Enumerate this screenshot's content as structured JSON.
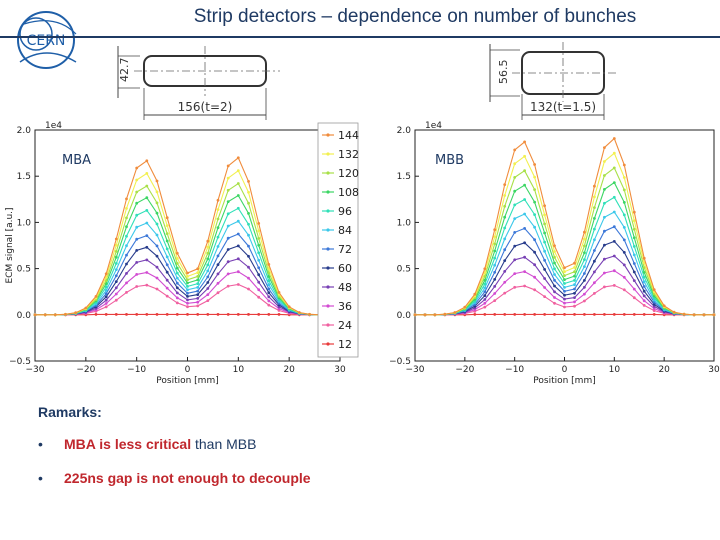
{
  "slide": {
    "title": "Strip detectors – dependence on number of  bunches",
    "logo_text": "CERN",
    "sketch_left": {
      "height_label": "42.7",
      "width_label": "156(t=2)"
    },
    "sketch_right": {
      "height_label": "56.5",
      "width_label": "132(t=1.5)"
    },
    "remarks": {
      "heading": "Ramarks:",
      "items": [
        {
          "bullet": "•",
          "highlight": "MBA is less critical",
          "rest": " than MBB"
        },
        {
          "bullet": "•",
          "highlight": "225ns gap is not enough to decouple",
          "rest": ""
        }
      ]
    },
    "colors": {
      "title": "#1f3a63",
      "accent_red": "#c0272d"
    }
  },
  "chart_data": [
    {
      "type": "line",
      "panel_label": "MBA",
      "scale_label": "1e4",
      "xlabel": "Position [mm]",
      "ylabel": "ECM signal [a.u.]",
      "xlim": [
        -30,
        30
      ],
      "ylim": [
        -0.5,
        2.0
      ],
      "xticks": [
        -30,
        -20,
        -10,
        0,
        10,
        20,
        30
      ],
      "xtick_labels": [
        "−30",
        "−20",
        "−10",
        "0",
        "10",
        "20",
        "30"
      ],
      "yticks": [
        -0.5,
        0.0,
        0.5,
        1.0,
        1.5,
        2.0
      ],
      "ytick_labels": [
        "−0.5",
        "0.0",
        "0.5",
        "1.0",
        "1.5",
        "2.0"
      ],
      "legend_position": "right",
      "x": [
        -30,
        -28,
        -26,
        -24,
        -22,
        -20,
        -18,
        -16,
        -14,
        -12,
        -10,
        -8,
        -6,
        -4,
        -2,
        0,
        2,
        4,
        6,
        8,
        10,
        12,
        14,
        16,
        18,
        20,
        22,
        24,
        26,
        28,
        30
      ],
      "series": [
        {
          "name": "144",
          "color": "#f08c3c",
          "peak": 1.71
        },
        {
          "name": "132",
          "color": "#f2f050",
          "peak": 1.57
        },
        {
          "name": "120",
          "color": "#a8e048",
          "peak": 1.43
        },
        {
          "name": "108",
          "color": "#3cd664",
          "peak": 1.3
        },
        {
          "name": "96",
          "color": "#30e0b8",
          "peak": 1.16
        },
        {
          "name": "84",
          "color": "#3cc8ea",
          "peak": 1.02
        },
        {
          "name": "72",
          "color": "#3c78d8",
          "peak": 0.88
        },
        {
          "name": "60",
          "color": "#283c8c",
          "peak": 0.75
        },
        {
          "name": "48",
          "color": "#7840b4",
          "peak": 0.61
        },
        {
          "name": "36",
          "color": "#d24cd2",
          "peak": 0.47
        },
        {
          "name": "24",
          "color": "#f060a0",
          "peak": 0.33
        },
        {
          "name": "12",
          "color": "#e83c3c",
          "peak": 0.02
        }
      ]
    },
    {
      "type": "line",
      "panel_label": "MBB",
      "scale_label": "1e4",
      "xlabel": "Position [mm]",
      "ylabel": "",
      "xlim": [
        -30,
        30
      ],
      "ylim": [
        -0.5,
        2.0
      ],
      "xticks": [
        -30,
        -20,
        -10,
        0,
        10,
        20,
        30
      ],
      "xtick_labels": [
        "−30",
        "−20",
        "−10",
        "0",
        "10",
        "20",
        "30"
      ],
      "yticks": [
        -0.5,
        0.0,
        0.5,
        1.0,
        1.5,
        2.0
      ],
      "ytick_labels": [
        "−0.5",
        "0.0",
        "0.5",
        "1.0",
        "1.5",
        "2.0"
      ],
      "x": [
        -30,
        -28,
        -26,
        -24,
        -22,
        -20,
        -18,
        -16,
        -14,
        -12,
        -10,
        -8,
        -6,
        -4,
        -2,
        0,
        2,
        4,
        6,
        8,
        10,
        12,
        14,
        16,
        18,
        20,
        22,
        24,
        26,
        28,
        30
      ],
      "series": [
        {
          "name": "144",
          "color": "#f08c3c",
          "peak": 1.92
        },
        {
          "name": "132",
          "color": "#f2f050",
          "peak": 1.76
        },
        {
          "name": "120",
          "color": "#a8e048",
          "peak": 1.6
        },
        {
          "name": "108",
          "color": "#3cd664",
          "peak": 1.44
        },
        {
          "name": "96",
          "color": "#30e0b8",
          "peak": 1.28
        },
        {
          "name": "84",
          "color": "#3cc8ea",
          "peak": 1.12
        },
        {
          "name": "72",
          "color": "#3c78d8",
          "peak": 0.96
        },
        {
          "name": "60",
          "color": "#283c8c",
          "peak": 0.8
        },
        {
          "name": "48",
          "color": "#7840b4",
          "peak": 0.64
        },
        {
          "name": "36",
          "color": "#d24cd2",
          "peak": 0.48
        },
        {
          "name": "24",
          "color": "#f060a0",
          "peak": 0.32
        },
        {
          "name": "12",
          "color": "#e83c3c",
          "peak": 0.02
        }
      ]
    }
  ]
}
